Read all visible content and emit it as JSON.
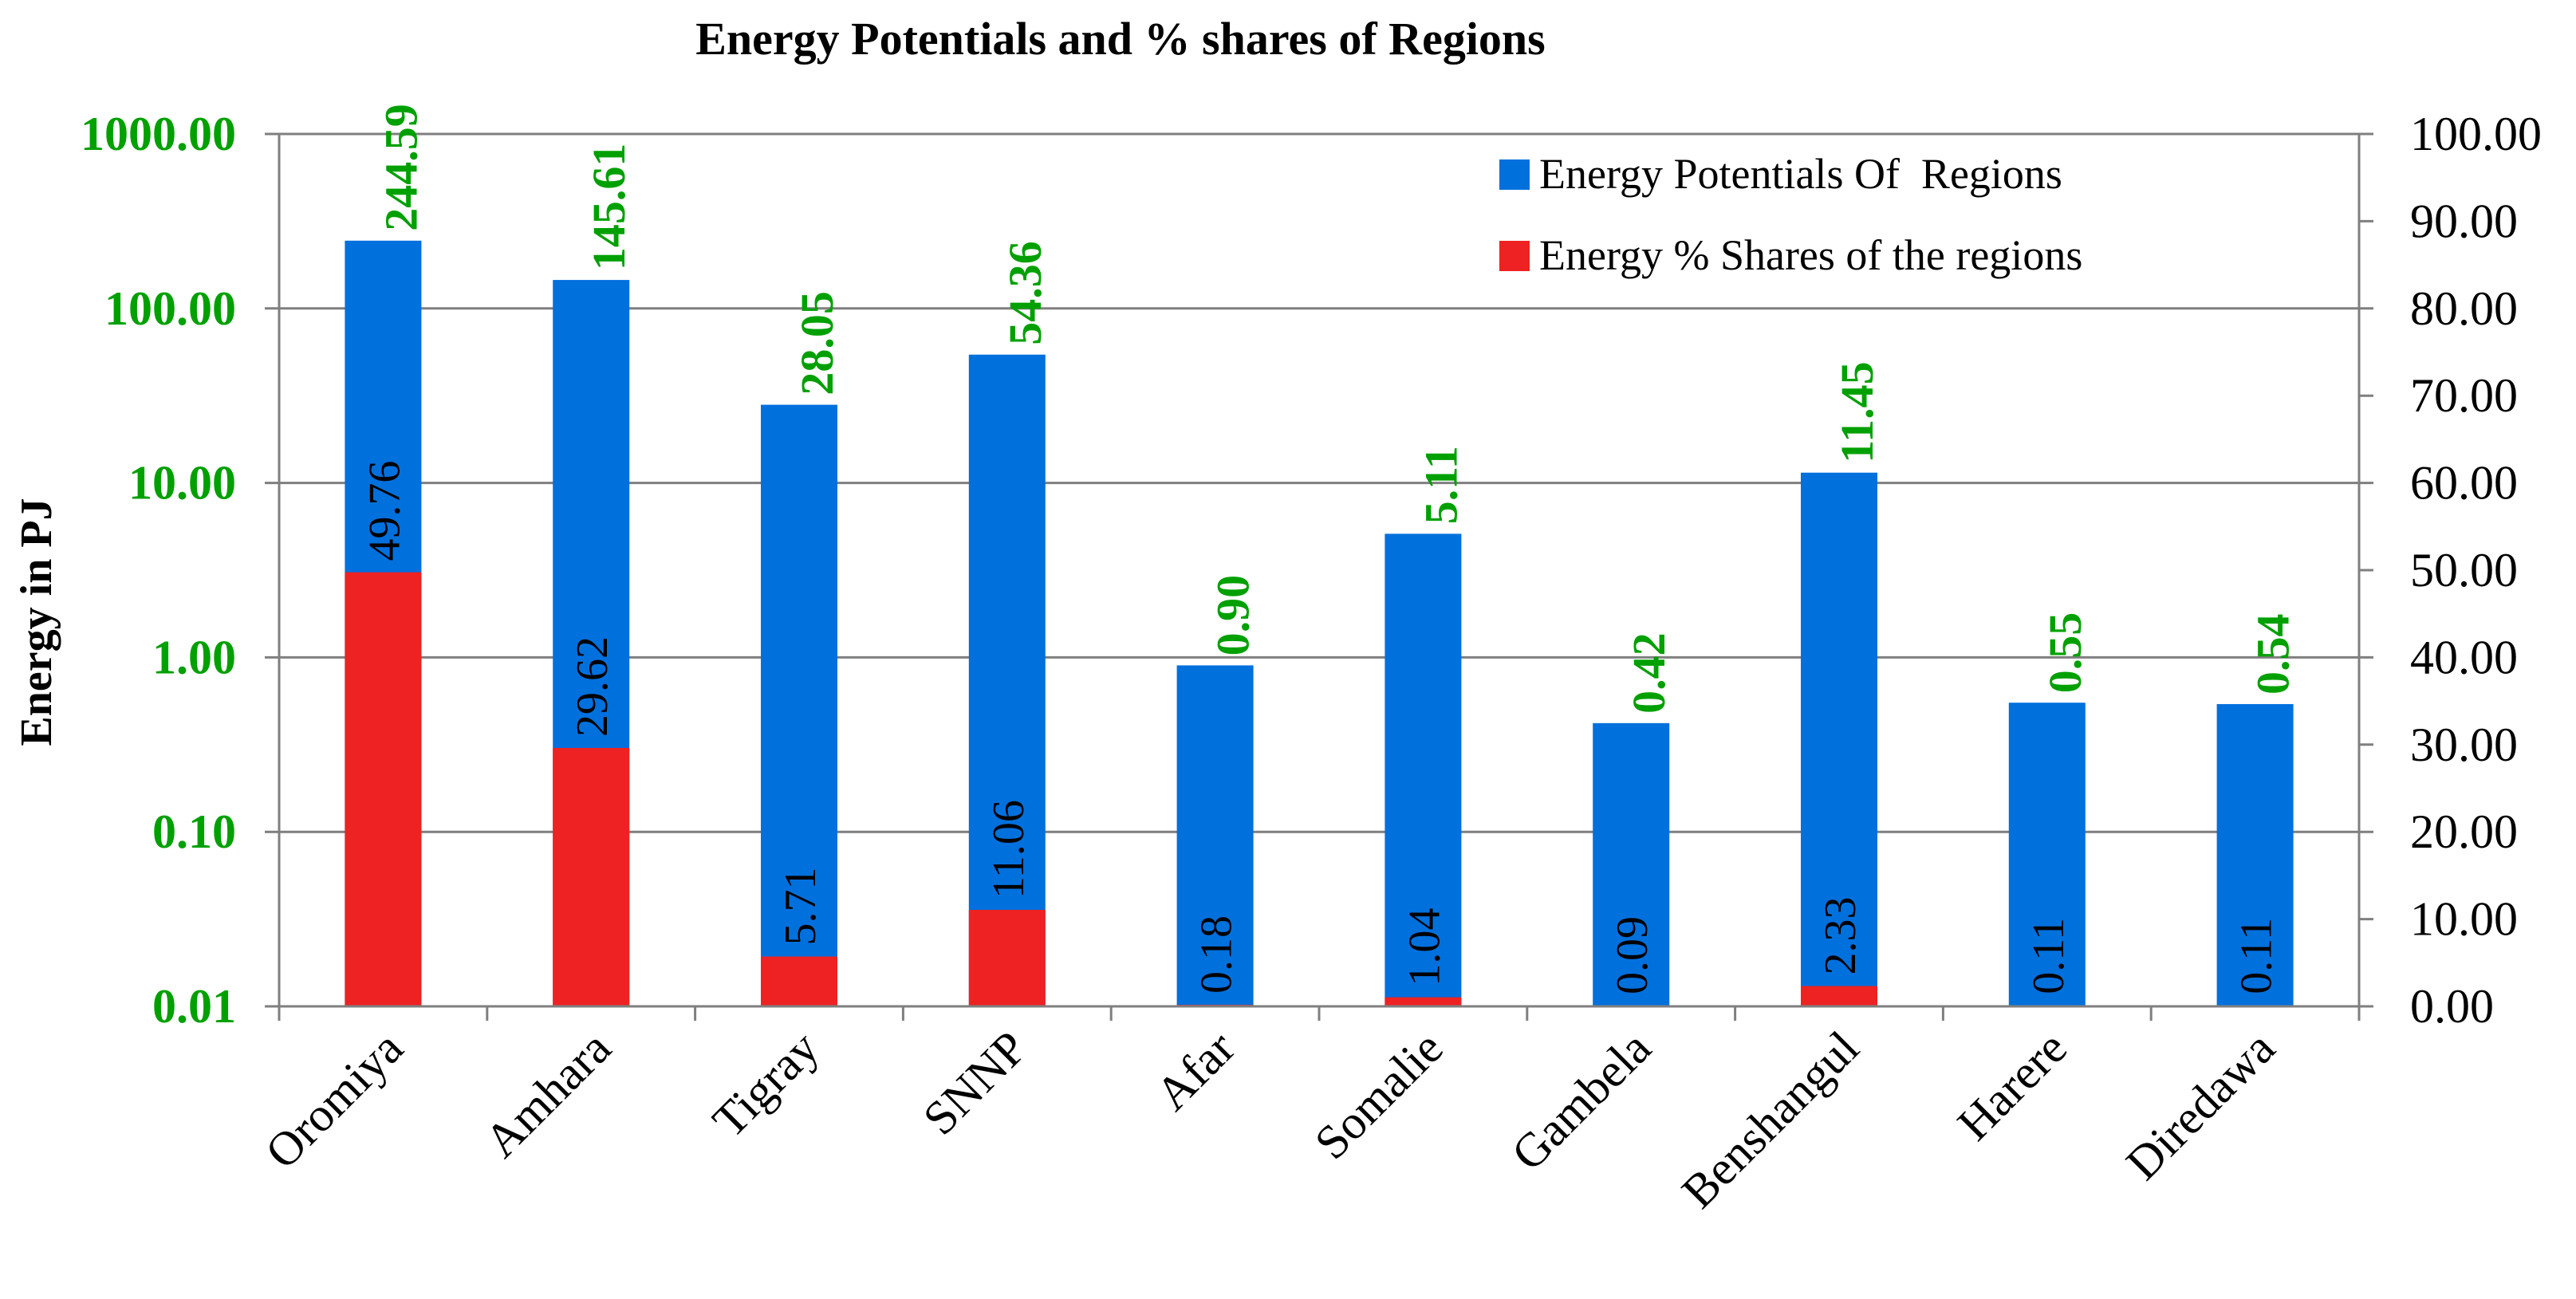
{
  "chart_data": {
    "type": "bar",
    "title": "Energy Potentials and % shares of Regions",
    "ylabel": "Energy in PJ",
    "xlabel": "",
    "categories": [
      "Oromiya",
      "Amhara",
      "Tigray",
      "SNNP",
      "Afar",
      "Somalie",
      "Gambela",
      "Benshangul",
      "Harere",
      "Diredawa"
    ],
    "series": [
      {
        "name": "Energy Potentials Of  Regions",
        "axis": "left",
        "scale": "log",
        "color": "#0070DD",
        "values": [
          244.59,
          145.61,
          28.05,
          54.36,
          0.9,
          5.11,
          0.42,
          11.45,
          0.55,
          0.54
        ],
        "labels": [
          "244.59",
          "145.61",
          "28.05",
          "54.36",
          "0.90",
          "5.11",
          "0.42",
          "11.45",
          "0.55",
          "0.54"
        ],
        "label_color": "#00A000"
      },
      {
        "name": "Energy % Shares of the regions",
        "axis": "right",
        "scale": "linear",
        "color": "#EE2222",
        "values": [
          49.76,
          29.62,
          5.71,
          11.06,
          0.18,
          1.04,
          0.09,
          2.33,
          0.11,
          0.11
        ],
        "labels": [
          "49.76",
          "29.62",
          "5.71",
          "11.06",
          "0.18",
          "1.04",
          "0.09",
          "2.33",
          "0.11",
          "0.11"
        ],
        "label_color": "#000000"
      }
    ],
    "y_left": {
      "scale": "log",
      "ylim": [
        0.01,
        1000
      ],
      "ticks": [
        0.01,
        0.1,
        1,
        10,
        100,
        1000
      ],
      "tick_labels": [
        "0.01",
        "0.10",
        "1.00",
        "10.00",
        "100.00",
        "1000.00"
      ],
      "tick_color": "#00A000"
    },
    "y_right": {
      "scale": "linear",
      "ylim": [
        0,
        100
      ],
      "ticks": [
        0,
        10,
        20,
        30,
        40,
        50,
        60,
        70,
        80,
        90,
        100
      ],
      "tick_labels": [
        "0.00",
        "10.00",
        "20.00",
        "30.00",
        "40.00",
        "50.00",
        "60.00",
        "70.00",
        "80.00",
        "90.00",
        "100.00"
      ]
    },
    "grid": true,
    "legend_position": "top-right"
  }
}
